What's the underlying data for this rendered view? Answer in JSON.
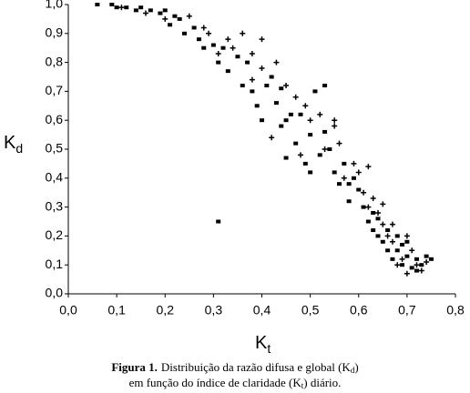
{
  "chart_data": {
    "type": "scatter",
    "x_label": {
      "text": "K",
      "sub": "t"
    },
    "y_label": {
      "text": "K",
      "sub": "d"
    },
    "caption": {
      "bold": "Figura 1.",
      "line1": "Distribuição da razão difusa e global (K",
      "sub1": "d",
      "end1": ")",
      "line2": "em função do índice de claridade (K",
      "sub2": "t",
      "end2": ") diário."
    },
    "xlim": [
      0,
      0.8
    ],
    "ylim": [
      0,
      1.0
    ],
    "xticks": [
      {
        "value": 0,
        "label": "0,0"
      },
      {
        "value": 0.1,
        "label": "0,1"
      },
      {
        "value": 0.2,
        "label": "0,2"
      },
      {
        "value": 0.3,
        "label": "0,3"
      },
      {
        "value": 0.4,
        "label": "0,4"
      },
      {
        "value": 0.5,
        "label": "0,5"
      },
      {
        "value": 0.6,
        "label": "0,6"
      },
      {
        "value": 0.7,
        "label": "0,7"
      },
      {
        "value": 0.8,
        "label": "0,8"
      }
    ],
    "yticks": [
      {
        "value": 0,
        "label": "0,0"
      },
      {
        "value": 0.1,
        "label": "0,1"
      },
      {
        "value": 0.2,
        "label": "0,2"
      },
      {
        "value": 0.3,
        "label": "0,3"
      },
      {
        "value": 0.4,
        "label": "0,4"
      },
      {
        "value": 0.5,
        "label": "0,5"
      },
      {
        "value": 0.6,
        "label": "0,6"
      },
      {
        "value": 0.7,
        "label": "0,7"
      },
      {
        "value": 0.8,
        "label": "0,8"
      },
      {
        "value": 0.9,
        "label": "0,9"
      },
      {
        "value": 1.0,
        "label": "1,0"
      }
    ],
    "series": [
      {
        "marker": "square",
        "color": "#000000",
        "x": [
          0.06,
          0.09,
          0.1,
          0.12,
          0.14,
          0.15,
          0.17,
          0.19,
          0.2,
          0.22,
          0.23,
          0.21,
          0.24,
          0.26,
          0.27,
          0.28,
          0.3,
          0.31,
          0.32,
          0.33,
          0.35,
          0.36,
          0.37,
          0.38,
          0.39,
          0.4,
          0.41,
          0.42,
          0.43,
          0.44,
          0.45,
          0.46,
          0.47,
          0.48,
          0.49,
          0.5,
          0.51,
          0.52,
          0.53,
          0.54,
          0.55,
          0.56,
          0.57,
          0.58,
          0.59,
          0.6,
          0.61,
          0.62,
          0.63,
          0.64,
          0.65,
          0.66,
          0.67,
          0.68,
          0.69,
          0.7,
          0.71,
          0.72,
          0.73,
          0.74,
          0.75,
          0.68,
          0.66,
          0.64,
          0.7,
          0.72,
          0.63,
          0.58,
          0.31,
          0.45,
          0.5,
          0.53,
          0.44,
          0.69
        ],
        "values": [
          1.0,
          1.0,
          0.99,
          0.99,
          0.98,
          0.99,
          0.98,
          0.97,
          0.98,
          0.96,
          0.95,
          0.93,
          0.9,
          0.92,
          0.88,
          0.85,
          0.86,
          0.8,
          0.85,
          0.77,
          0.82,
          0.72,
          0.8,
          0.7,
          0.65,
          0.6,
          0.72,
          0.75,
          0.66,
          0.58,
          0.6,
          0.62,
          0.52,
          0.62,
          0.45,
          0.55,
          0.7,
          0.48,
          0.56,
          0.5,
          0.42,
          0.38,
          0.45,
          0.32,
          0.4,
          0.36,
          0.3,
          0.25,
          0.28,
          0.2,
          0.18,
          0.15,
          0.12,
          0.15,
          0.1,
          0.13,
          0.09,
          0.12,
          0.1,
          0.13,
          0.12,
          0.2,
          0.22,
          0.26,
          0.18,
          0.08,
          0.22,
          0.38,
          0.25,
          0.47,
          0.42,
          0.72,
          0.71,
          0.17
        ]
      },
      {
        "marker": "plus",
        "color": "#000000",
        "x": [
          0.11,
          0.16,
          0.2,
          0.25,
          0.28,
          0.29,
          0.33,
          0.34,
          0.36,
          0.38,
          0.4,
          0.4,
          0.43,
          0.45,
          0.47,
          0.49,
          0.5,
          0.52,
          0.53,
          0.55,
          0.56,
          0.57,
          0.59,
          0.6,
          0.61,
          0.62,
          0.63,
          0.64,
          0.65,
          0.66,
          0.67,
          0.68,
          0.69,
          0.7,
          0.71,
          0.72,
          0.73,
          0.74,
          0.62,
          0.65,
          0.42,
          0.48,
          0.31,
          0.38,
          0.55,
          0.67,
          0.7
        ],
        "values": [
          0.99,
          0.97,
          0.95,
          0.96,
          0.92,
          0.9,
          0.88,
          0.85,
          0.9,
          0.83,
          0.88,
          0.78,
          0.8,
          0.72,
          0.68,
          0.65,
          0.6,
          0.62,
          0.5,
          0.58,
          0.52,
          0.4,
          0.45,
          0.42,
          0.35,
          0.3,
          0.33,
          0.28,
          0.24,
          0.2,
          0.18,
          0.1,
          0.12,
          0.07,
          0.15,
          0.1,
          0.08,
          0.11,
          0.44,
          0.31,
          0.54,
          0.48,
          0.83,
          0.74,
          0.6,
          0.24,
          0.2
        ]
      }
    ]
  }
}
